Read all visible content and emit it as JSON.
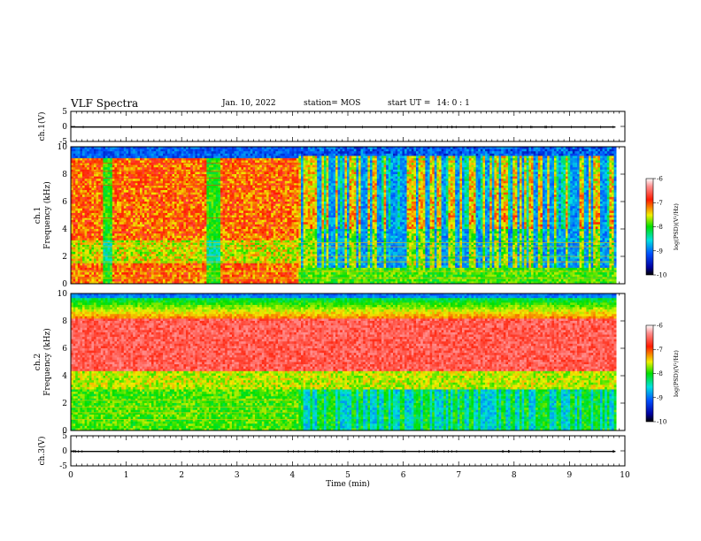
{
  "header": {
    "title": "VLF Spectra",
    "date": "Jan. 10, 2022",
    "station": "station= MOS",
    "start_label": "start  UT =",
    "start_time": "14: 0  : 1"
  },
  "chart_data": [
    {
      "id": "ch1-waveform",
      "type": "line",
      "ylabel": "ch.1(V)",
      "ylim": [
        -5,
        5
      ],
      "yticks": [
        "5",
        "0",
        "-5"
      ],
      "x": [
        0,
        9.83
      ],
      "values": [
        -0.2,
        -0.2
      ],
      "xlim": [
        0,
        10
      ]
    },
    {
      "id": "ch1-spectrogram",
      "type": "heatmap",
      "ylabel_top": "ch.1",
      "ylabel": "Frequency (kHz)",
      "ylim": [
        0,
        10
      ],
      "yticks": [
        "0",
        "2",
        "4",
        "6",
        "8",
        "10"
      ],
      "xlim": [
        0,
        10
      ],
      "data_end_min": 9.83,
      "colorbar": {
        "label": "log(PSD)(V²/Hz)",
        "range": [
          -10,
          -6
        ],
        "ticks": [
          "-6",
          "-7",
          "-8",
          "-9",
          "-10"
        ]
      }
    },
    {
      "id": "ch2-spectrogram",
      "type": "heatmap",
      "ylabel_top": "ch.2",
      "ylabel": "Frequency (kHz)",
      "ylim": [
        0,
        10
      ],
      "yticks": [
        "0",
        "2",
        "4",
        "6",
        "8",
        "10"
      ],
      "xlim": [
        0,
        10
      ],
      "data_end_min": 9.83,
      "colorbar": {
        "label": "log(PSD)(V²/Hz)",
        "range": [
          -10,
          -6
        ],
        "ticks": [
          "-6",
          "-7",
          "-8",
          "-9",
          "-10"
        ]
      }
    },
    {
      "id": "ch3-waveform",
      "type": "line",
      "ylabel": "ch.3(V)",
      "ylim": [
        -5,
        5
      ],
      "yticks": [
        "5",
        "0",
        "-5"
      ],
      "x": [
        0,
        9.83
      ],
      "values": [
        -0.2,
        -0.2
      ],
      "xlim": [
        0,
        10
      ],
      "xlabel": "Time (min)",
      "xticks": [
        "0",
        "1",
        "2",
        "3",
        "4",
        "5",
        "6",
        "7",
        "8",
        "9",
        "10"
      ]
    }
  ]
}
